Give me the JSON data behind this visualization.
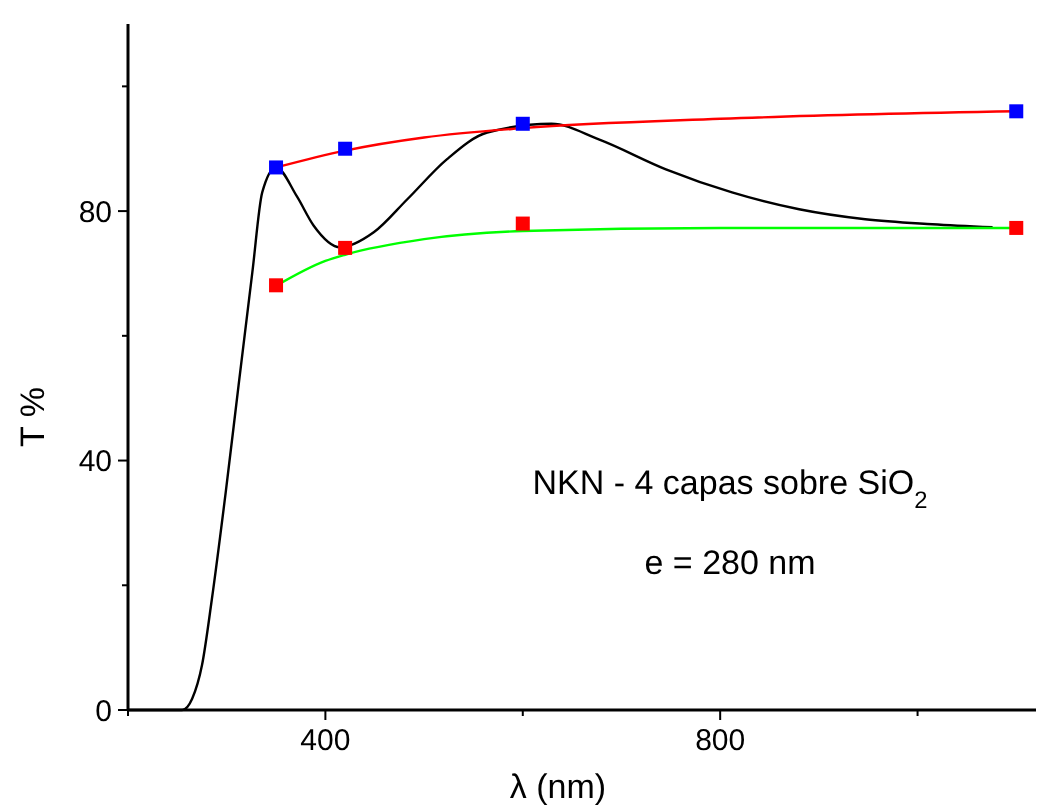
{
  "chart_data": {
    "type": "line",
    "xlabel": "λ   (nm)",
    "ylabel": "T %",
    "annotations": [
      "NKN - 4 capas sobre SiO$_{2}$",
      "e = 280 nm"
    ],
    "xlim": [
      200,
      1120
    ],
    "ylim": [
      0,
      110
    ],
    "xticks": [
      {
        "value": 200,
        "label": null
      },
      400,
      {
        "value": 600,
        "label": null
      },
      800,
      {
        "value": 1000,
        "label": null
      }
    ],
    "yticks": [
      0,
      {
        "value": 20,
        "label": null
      },
      40,
      {
        "value": 60,
        "label": null
      },
      80,
      {
        "value": 100,
        "label": null
      }
    ],
    "grid": false,
    "series": [
      {
        "color": "#000000",
        "marker": "none",
        "x": [
          200,
          255,
          265,
          275,
          285,
          299,
          312,
          326,
          336,
          350,
          371,
          388,
          415,
          449,
          483,
          523,
          564,
          629,
          677,
          745,
          812,
          880,
          947,
          1015,
          1076
        ],
        "values": [
          0,
          0,
          1.8,
          7.2,
          17.8,
          34.9,
          52,
          70.2,
          83,
          87,
          82.4,
          77.7,
          74.2,
          76.6,
          81.9,
          88.3,
          92.6,
          94,
          91.5,
          86.7,
          83,
          80.3,
          78.7,
          77.9,
          77.4
        ]
      },
      {
        "color": "#ff0000",
        "marker": "none",
        "x": [
          350,
          420,
          500,
          600,
          800,
          1100
        ],
        "values": [
          87,
          89.7,
          91.8,
          93.3,
          94.8,
          96
        ]
      },
      {
        "color": "#00ff00",
        "marker": "none",
        "x": [
          350,
          400,
          420,
          500,
          600,
          800,
          1100
        ],
        "values": [
          68,
          72,
          73,
          75.5,
          76.8,
          77.3,
          77.3
        ]
      },
      {
        "type": "scatter",
        "color": "#0000ff",
        "marker": "square",
        "x": [
          350,
          420,
          600,
          1100
        ],
        "values": [
          87,
          90,
          94,
          96
        ]
      },
      {
        "type": "scatter",
        "color": "#ff0000",
        "marker": "square",
        "x": [
          350,
          420,
          600,
          1100
        ],
        "values": [
          68.1,
          74.1,
          78,
          77.3
        ]
      }
    ]
  }
}
